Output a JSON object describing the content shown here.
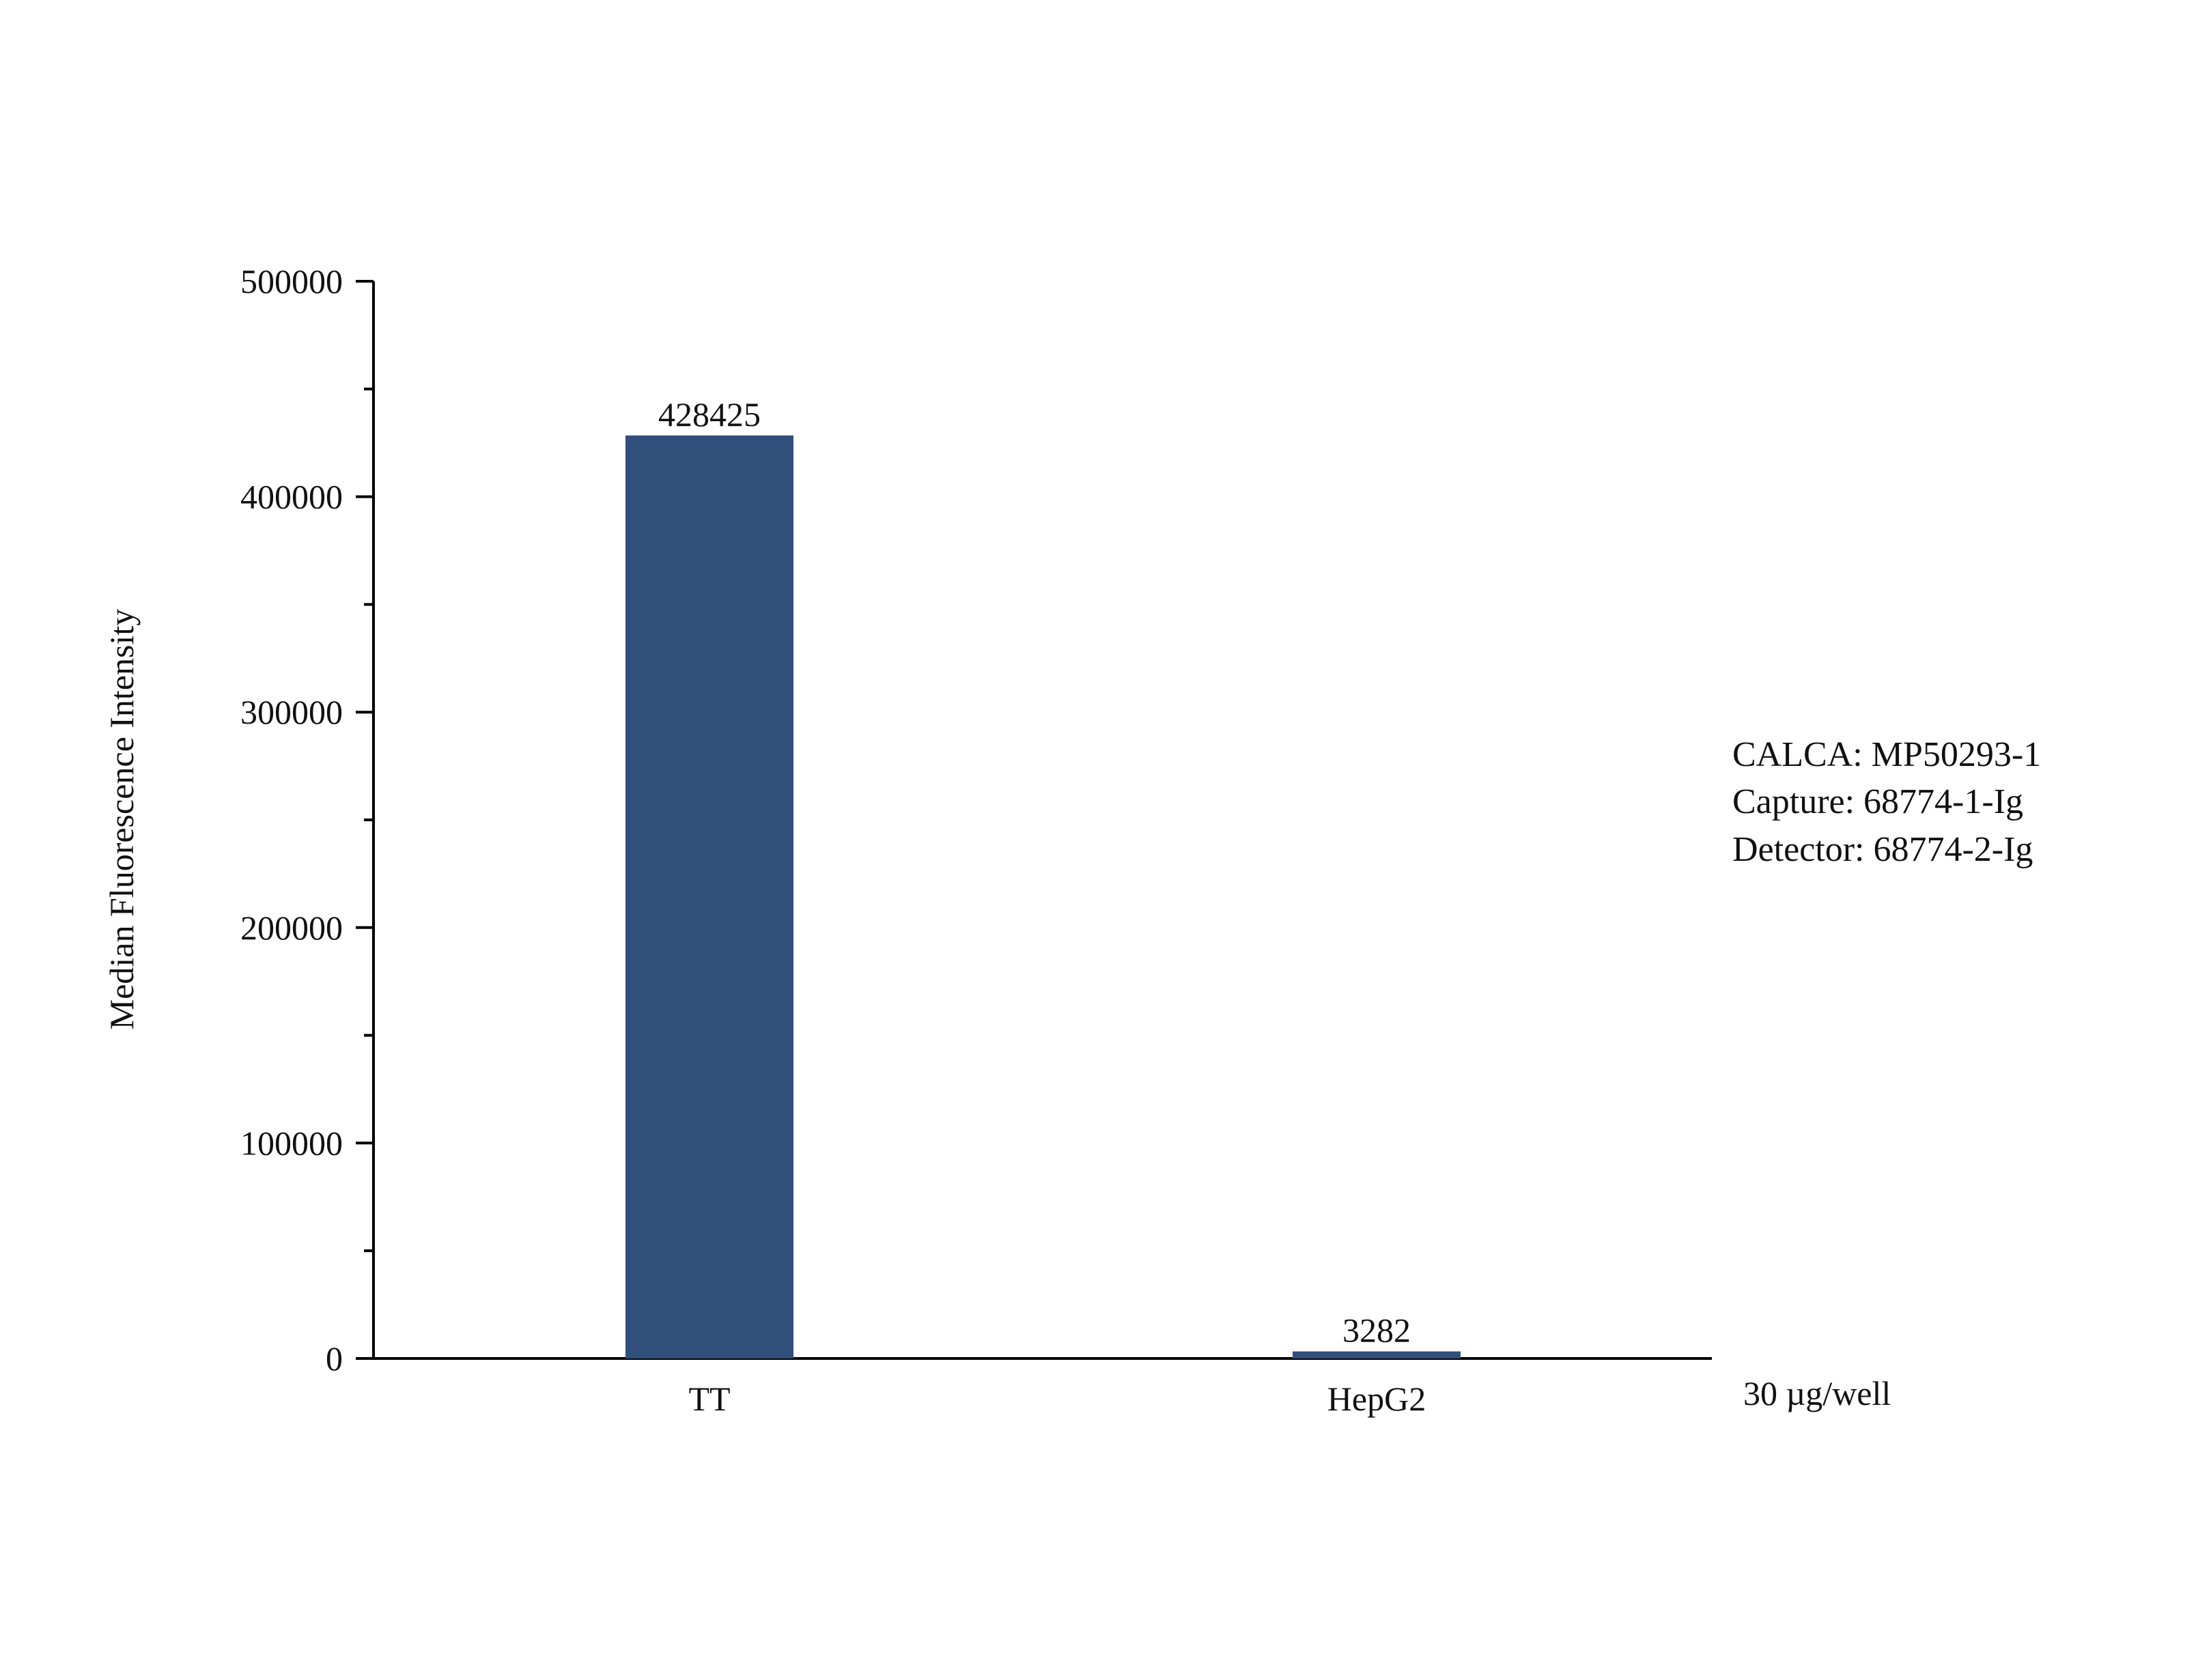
{
  "chart_data": {
    "type": "bar",
    "title": "",
    "xlabel": "",
    "ylabel": "Median Fluorescence Intensity",
    "categories": [
      "TT",
      "HepG2"
    ],
    "values": [
      428425,
      3282
    ],
    "data_labels": [
      "428425",
      "3282"
    ],
    "ylim": [
      0,
      500000
    ],
    "yticks": [
      0,
      100000,
      200000,
      300000,
      400000,
      500000
    ],
    "ytick_labels": [
      "0",
      "100000",
      "200000",
      "300000",
      "400000",
      "500000"
    ],
    "y_minor_ticks": [
      50000,
      150000,
      250000,
      350000,
      450000
    ],
    "grid": false,
    "legend": "none",
    "bar_color": "#304f7a",
    "x_axis_note": "30 µg/well",
    "annotations": [
      "CALCA: MP50293-1",
      "Capture: 68774-1-Ig",
      "Detector: 68774-2-Ig"
    ]
  }
}
